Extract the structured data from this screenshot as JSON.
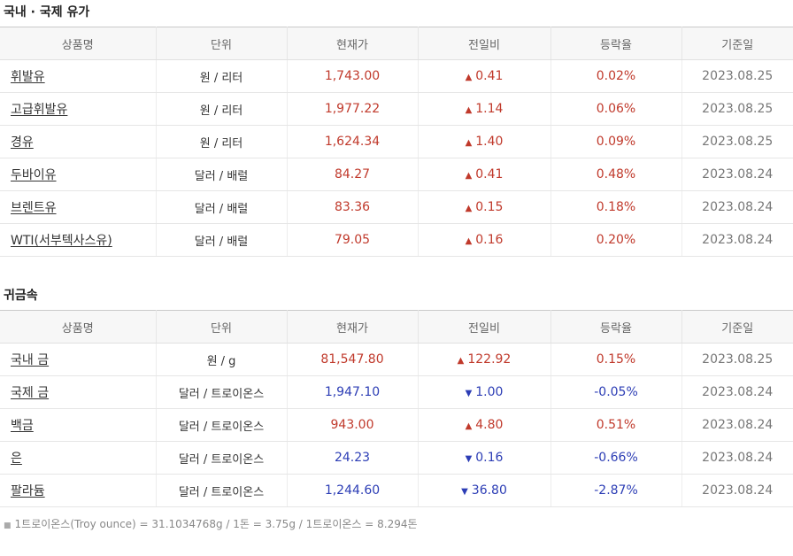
{
  "oil": {
    "title": "국내 · 국제 유가",
    "headers": [
      "상품명",
      "단위",
      "현재가",
      "전일비",
      "등락율",
      "기준일"
    ],
    "rows": [
      {
        "name": "휘발유",
        "unit": "원 / 리터",
        "price": "1,743.00",
        "dir": "up",
        "change": "0.41",
        "rate": "0.02%",
        "date": "2023.08.25"
      },
      {
        "name": "고급휘발유",
        "unit": "원 / 리터",
        "price": "1,977.22",
        "dir": "up",
        "change": "1.14",
        "rate": "0.06%",
        "date": "2023.08.25"
      },
      {
        "name": "경유",
        "unit": "원 / 리터",
        "price": "1,624.34",
        "dir": "up",
        "change": "1.40",
        "rate": "0.09%",
        "date": "2023.08.25"
      },
      {
        "name": "두바이유",
        "unit": "달러 / 배럴",
        "price": "84.27",
        "dir": "up",
        "change": "0.41",
        "rate": "0.48%",
        "date": "2023.08.24"
      },
      {
        "name": "브렌트유",
        "unit": "달러 / 배럴",
        "price": "83.36",
        "dir": "up",
        "change": "0.15",
        "rate": "0.18%",
        "date": "2023.08.24"
      },
      {
        "name": "WTI(서부텍사스유)",
        "unit": "달러 / 배럴",
        "price": "79.05",
        "dir": "up",
        "change": "0.16",
        "rate": "0.20%",
        "date": "2023.08.24"
      }
    ]
  },
  "metal": {
    "title": "귀금속",
    "headers": [
      "상품명",
      "단위",
      "현재가",
      "전일비",
      "등락율",
      "기준일"
    ],
    "rows": [
      {
        "name": "국내 금",
        "unit": "원 / g",
        "price": "81,547.80",
        "dir": "up",
        "change": "122.92",
        "rate": "0.15%",
        "date": "2023.08.25"
      },
      {
        "name": "국제 금",
        "unit": "달러 / 트로이온스",
        "price": "1,947.10",
        "dir": "down",
        "change": "1.00",
        "rate": "-0.05%",
        "date": "2023.08.24"
      },
      {
        "name": "백금",
        "unit": "달러 / 트로이온스",
        "price": "943.00",
        "dir": "up",
        "change": "4.80",
        "rate": "0.51%",
        "date": "2023.08.24"
      },
      {
        "name": "은",
        "unit": "달러 / 트로이온스",
        "price": "24.23",
        "dir": "down",
        "change": "0.16",
        "rate": "-0.66%",
        "date": "2023.08.24"
      },
      {
        "name": "팔라듐",
        "unit": "달러 / 트로이온스",
        "price": "1,244.60",
        "dir": "down",
        "change": "36.80",
        "rate": "-2.87%",
        "date": "2023.08.24"
      }
    ]
  },
  "note": "1트로이온스(Troy ounce) = 31.1034768g / 1돈 = 3.75g / 1트로이온스 = 8.294돈",
  "colors": {
    "up": "#c0392b",
    "down": "#2c3db5"
  },
  "icons": {
    "up": "triangle-up-icon",
    "down": "triangle-down-icon"
  }
}
